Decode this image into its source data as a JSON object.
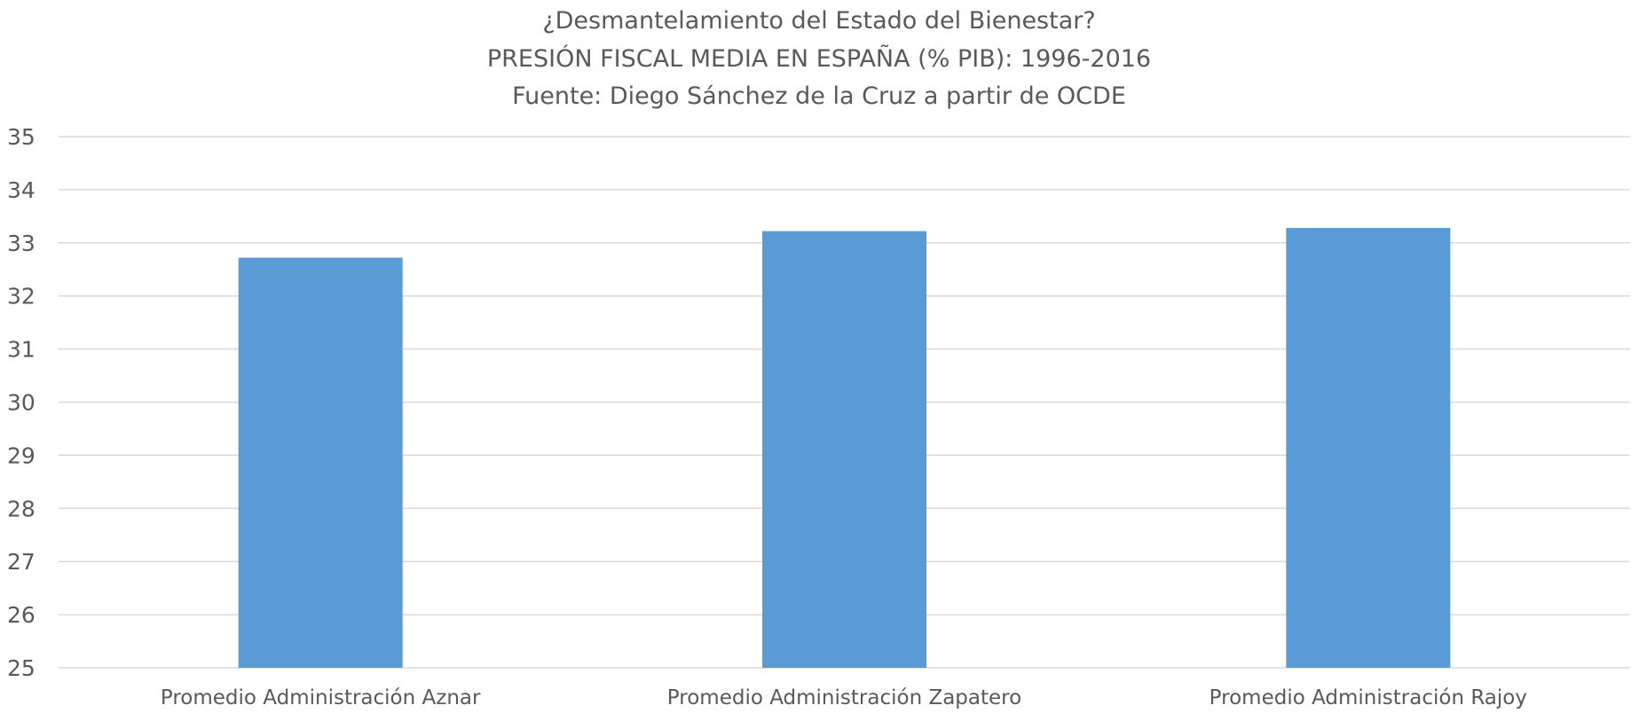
{
  "chart_data": {
    "type": "bar",
    "title": [
      "¿Desmantelamiento del Estado del Bienestar?",
      "PRESIÓN FISCAL MEDIA EN ESPAÑA (% PIB): 1996-2016",
      "Fuente: Diego Sánchez de la Cruz a partir de OCDE"
    ],
    "categories": [
      "Promedio Administración Aznar",
      "Promedio Administración Zapatero",
      "Promedio Administración Rajoy"
    ],
    "values": [
      32.72,
      33.22,
      33.28
    ],
    "ylim": [
      25,
      35
    ],
    "yticks": [
      25,
      26,
      27,
      28,
      29,
      30,
      31,
      32,
      33,
      34,
      35
    ],
    "xlabel": "",
    "ylabel": "",
    "grid": true,
    "legend": "none",
    "colors": {
      "bar": "#5b9bd5",
      "grid": "#d9d9d9",
      "text": "#595959"
    }
  }
}
